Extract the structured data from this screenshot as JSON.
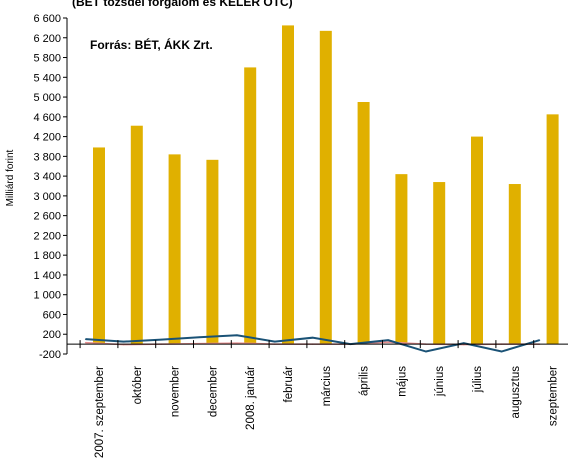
{
  "chart_data": {
    "type": "bar",
    "title": "(BÉT tőzsdei forgalom és KELER OTC)",
    "source_note": "Forrás:  BÉT, ÁKK Zrt.",
    "ylabel": "Milliárd forint",
    "ylim": [
      -200,
      6600
    ],
    "yticks": [
      "6 600",
      "6 200",
      "5 800",
      "5 400",
      "5 000",
      "4 600",
      "4 200",
      "3 800",
      "3 400",
      "3 000",
      "2 600",
      "2 200",
      "1 800",
      "1 400",
      "1 000",
      "600",
      "200",
      "-200"
    ],
    "ytick_values": [
      6600,
      6200,
      5800,
      5400,
      5000,
      4600,
      4200,
      3800,
      3400,
      3000,
      2600,
      2200,
      1800,
      1400,
      1000,
      600,
      200,
      -200
    ],
    "categories": [
      "2007. szeptember",
      "október",
      "november",
      "december",
      "2008. január",
      "február",
      "március",
      "április",
      "május",
      "június",
      "július",
      "augusztus",
      "szeptember"
    ],
    "series": [
      {
        "values": [
          3980,
          4420,
          3840,
          3730,
          5600,
          6450,
          6340,
          4900,
          3440,
          3280,
          4200,
          3240,
          4650
        ],
        "color": "#e0b000",
        "kind": "bar"
      },
      {
        "values": [
          30,
          -10,
          0,
          10,
          20,
          0,
          0,
          0,
          40,
          0,
          -10,
          0,
          0
        ],
        "color": "#e89090",
        "kind": "line"
      },
      {
        "values": [
          100,
          50,
          90,
          140,
          180,
          50,
          130,
          0,
          80,
          -150,
          20,
          -150,
          80
        ],
        "color": "#1a5276",
        "kind": "line"
      }
    ],
    "grid": false,
    "baseline": 0
  }
}
